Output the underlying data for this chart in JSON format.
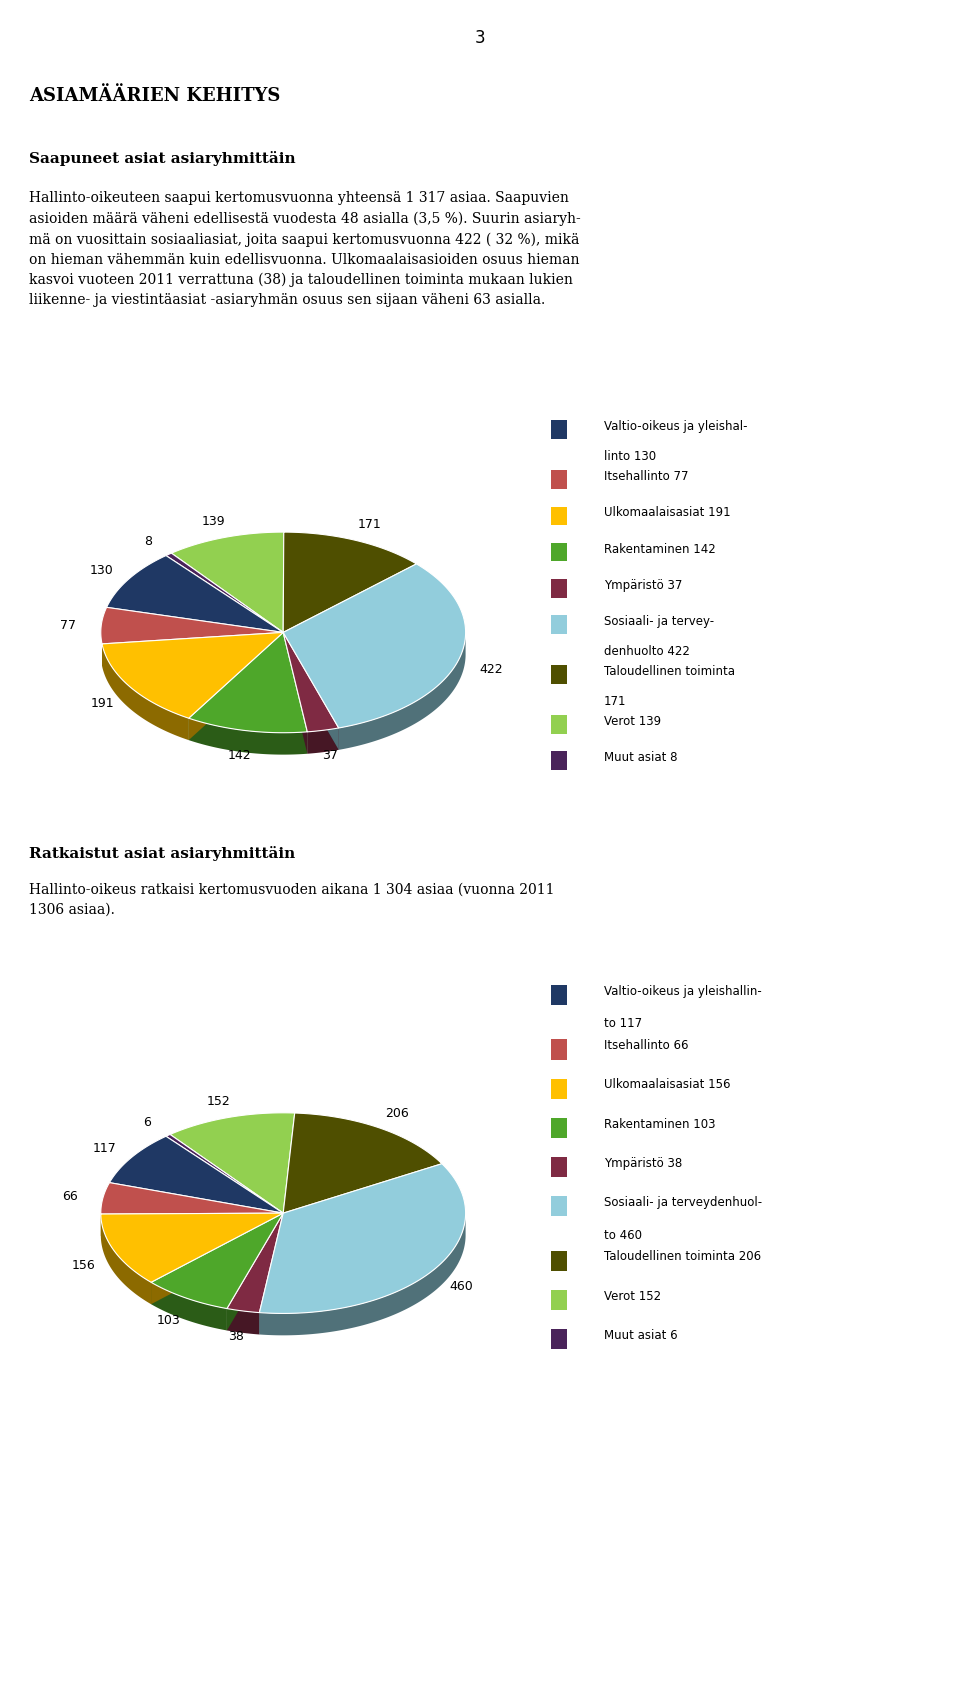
{
  "page_number": "3",
  "main_title": "ASIAMÄÄRIEN KEHITYS",
  "section1_title": "Saapuneet asiat asiaryhmittäin",
  "section1_text1": "Hallinto-oikeuteen saapui kertomusvuonna yhteensä 1 317 asiaa. Saapuvien\nasioiden määrä väheni edellisestä vuodesta 48 asialla (3,5 %). Suurin asiaryh-\nmä on vuosittain sosiaaliasiat, joita saapui kertomusvuonna 422 ( 32 %), mikä\non hieman vähemmän kuin edellisvuonna. Ulkomaalaisasioiden osuus hieman\nkasvoi vuoteen 2011 verrattuna (38) ja taloudellinen toiminta mukaan lukien\nliikenne- ja viestintäasiat -asiaryhmän osuus sen sijaan väheni 63 asialla.",
  "section2_title": "Ratkaistut asiat asiaryhmittäin",
  "section2_text": "Hallinto-oikeus ratkaisi kertomusvuoden aikana 1 304 asiaa (vuonna 2011\n1306 asiaa).",
  "chart1": {
    "values": [
      130,
      77,
      191,
      142,
      37,
      422,
      171,
      139,
      8
    ],
    "colors": [
      "#1F3864",
      "#C0504D",
      "#FFC000",
      "#4EA72A",
      "#7F2A43",
      "#92CDDC",
      "#4F4F00",
      "#92D050",
      "#4A235A"
    ],
    "label_values": [
      130,
      77,
      191,
      142,
      37,
      422,
      171,
      139,
      8
    ],
    "startangle": 130
  },
  "chart2": {
    "values": [
      117,
      66,
      156,
      103,
      38,
      460,
      206,
      152,
      6
    ],
    "colors": [
      "#1F3864",
      "#C0504D",
      "#FFC000",
      "#4EA72A",
      "#7F2A43",
      "#92CDDC",
      "#4F4F00",
      "#92D050",
      "#4A235A"
    ],
    "label_values": [
      117,
      66,
      156,
      103,
      38,
      460,
      206,
      152,
      6
    ],
    "startangle": 130
  },
  "leg1_entries": [
    [
      "Valtio-oikeus ja yleishal-",
      "linto 130"
    ],
    [
      "Itsehallinto 77"
    ],
    [
      "Ulkomaalaisasiat 191"
    ],
    [
      "Rakentaminen 142"
    ],
    [
      "Ympäristö 37"
    ],
    [
      "Sosiaali- ja tervey-",
      "denhuolto 422"
    ],
    [
      "Taloudellinen toiminta",
      "171"
    ],
    [
      "Verot 139"
    ],
    [
      "Muut asiat 8"
    ]
  ],
  "leg2_entries": [
    [
      "Valtio-oikeus ja yleishallin-",
      "to 117"
    ],
    [
      "Itsehallinto 66"
    ],
    [
      "Ulkomaalaisasiat 156"
    ],
    [
      "Rakentaminen 103"
    ],
    [
      "Ympäristö 38"
    ],
    [
      "Sosiaali- ja terveydenhuol-",
      "to 460"
    ],
    [
      "Taloudellinen toiminta 206"
    ],
    [
      "Verot 152"
    ],
    [
      "Muut asiat 6"
    ]
  ],
  "background_color": "#FFFFFF"
}
